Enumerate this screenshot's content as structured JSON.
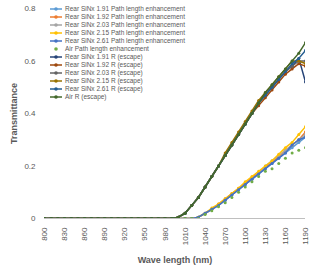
{
  "chart_data": {
    "type": "line",
    "x_label": "Wave length (nm)",
    "y_label": "Transmittance",
    "x": [
      800,
      810,
      820,
      830,
      840,
      850,
      860,
      870,
      880,
      890,
      900,
      910,
      920,
      930,
      940,
      950,
      960,
      970,
      980,
      990,
      1000,
      1010,
      1020,
      1030,
      1040,
      1050,
      1060,
      1070,
      1080,
      1090,
      1100,
      1110,
      1120,
      1130,
      1140,
      1150,
      1160,
      1170,
      1180,
      1190
    ],
    "xlim": [
      800,
      1190
    ],
    "xticks": [
      800,
      830,
      860,
      890,
      920,
      950,
      980,
      1010,
      1040,
      1070,
      1100,
      1130,
      1160,
      1190
    ],
    "ylim": [
      0,
      0.8
    ],
    "yticks": [
      0,
      0.2,
      0.4,
      0.6,
      0.8
    ],
    "grid": false,
    "legend": "top-left",
    "series": [
      {
        "name": "Rear SiNx 1.91 Path length enhancement",
        "color": "#5b9bd5",
        "marker": "circle",
        "line_style": "solid",
        "values": [
          0,
          0,
          0,
          0,
          0,
          0,
          0,
          0,
          0,
          0,
          0,
          0,
          0,
          0,
          0,
          0,
          0,
          0,
          0,
          0,
          0,
          0,
          0,
          0.005,
          0.02,
          0.035,
          0.05,
          0.07,
          0.09,
          0.11,
          0.13,
          0.15,
          0.17,
          0.19,
          0.21,
          0.23,
          0.25,
          0.27,
          0.29,
          0.31
        ]
      },
      {
        "name": "Rear SiNx 1.92 Path length enhancement",
        "color": "#ed7d31",
        "marker": "circle",
        "line_style": "solid",
        "values": [
          0,
          0,
          0,
          0,
          0,
          0,
          0,
          0,
          0,
          0,
          0,
          0,
          0,
          0,
          0,
          0,
          0,
          0,
          0,
          0,
          0,
          0,
          0,
          0.005,
          0.02,
          0.035,
          0.055,
          0.075,
          0.095,
          0.115,
          0.135,
          0.155,
          0.175,
          0.195,
          0.215,
          0.235,
          0.26,
          0.28,
          0.3,
          0.33
        ]
      },
      {
        "name": "Rear SiNx 2.03 Path length enhancement",
        "color": "#a5a5a5",
        "marker": "circle",
        "line_style": "solid",
        "values": [
          0,
          0,
          0,
          0,
          0,
          0,
          0,
          0,
          0,
          0,
          0,
          0,
          0,
          0,
          0,
          0,
          0,
          0,
          0,
          0,
          0,
          0,
          0,
          0.005,
          0.02,
          0.035,
          0.05,
          0.07,
          0.09,
          0.11,
          0.13,
          0.15,
          0.17,
          0.2,
          0.22,
          0.24,
          0.26,
          0.28,
          0.3,
          0.32
        ]
      },
      {
        "name": "Rear SiNx 2.15 Path length enhancement",
        "color": "#ffc000",
        "marker": "circle",
        "line_style": "solid",
        "values": [
          0,
          0,
          0,
          0,
          0,
          0,
          0,
          0,
          0,
          0,
          0,
          0,
          0,
          0,
          0,
          0,
          0,
          0,
          0,
          0,
          0,
          0,
          0,
          0.005,
          0.02,
          0.04,
          0.055,
          0.075,
          0.095,
          0.115,
          0.14,
          0.16,
          0.18,
          0.2,
          0.22,
          0.245,
          0.27,
          0.29,
          0.32,
          0.35
        ]
      },
      {
        "name": "Rear SiNx 2.61 Path length enhancement",
        "color": "#4472c4",
        "marker": "circle",
        "line_style": "solid",
        "values": [
          0,
          0,
          0,
          0,
          0,
          0,
          0,
          0,
          0,
          0,
          0,
          0,
          0,
          0,
          0,
          0,
          0,
          0,
          0,
          0,
          0,
          0,
          0,
          0.005,
          0.02,
          0.035,
          0.05,
          0.07,
          0.09,
          0.11,
          0.13,
          0.15,
          0.17,
          0.19,
          0.21,
          0.23,
          0.25,
          0.28,
          0.3,
          0.31
        ]
      },
      {
        "name": "Air Path length enhancement",
        "color": "#70ad47",
        "marker": "circle",
        "line_style": "none",
        "values": [
          0,
          0,
          0,
          0,
          0,
          0,
          0,
          0,
          0,
          0,
          0,
          0,
          0,
          0,
          0,
          0,
          0,
          0,
          0,
          0,
          0,
          0,
          0,
          0,
          0.015,
          0.03,
          0.045,
          0.06,
          0.08,
          0.1,
          0.12,
          0.14,
          0.16,
          0.18,
          0.19,
          0.21,
          0.23,
          0.25,
          0.26,
          0.27
        ]
      },
      {
        "name": "Rear SiNx 1.91 R (escape)",
        "color": "#264478",
        "marker": "circle",
        "line_style": "solid",
        "values": [
          0,
          0,
          0,
          0,
          0,
          0,
          0,
          0,
          0,
          0,
          0,
          0,
          0,
          0,
          0,
          0,
          0,
          0,
          0,
          0,
          0.005,
          0.02,
          0.05,
          0.08,
          0.12,
          0.16,
          0.2,
          0.24,
          0.28,
          0.32,
          0.36,
          0.4,
          0.44,
          0.47,
          0.5,
          0.53,
          0.56,
          0.58,
          0.61,
          0.52
        ]
      },
      {
        "name": "Rear SiNx 1.92 R (escape)",
        "color": "#9e480e",
        "marker": "circle",
        "line_style": "solid",
        "values": [
          0,
          0,
          0,
          0,
          0,
          0,
          0,
          0,
          0,
          0,
          0,
          0,
          0,
          0,
          0,
          0,
          0,
          0,
          0,
          0,
          0.005,
          0.02,
          0.05,
          0.08,
          0.12,
          0.16,
          0.2,
          0.24,
          0.28,
          0.32,
          0.36,
          0.4,
          0.43,
          0.46,
          0.49,
          0.52,
          0.55,
          0.57,
          0.59,
          0.58
        ]
      },
      {
        "name": "Rear SiNx 2.03 R (escape)",
        "color": "#636363",
        "marker": "circle",
        "line_style": "solid",
        "values": [
          0,
          0,
          0,
          0,
          0,
          0,
          0,
          0,
          0,
          0,
          0,
          0,
          0,
          0,
          0,
          0,
          0,
          0,
          0,
          0,
          0.005,
          0.02,
          0.05,
          0.08,
          0.12,
          0.16,
          0.2,
          0.24,
          0.28,
          0.32,
          0.36,
          0.4,
          0.44,
          0.47,
          0.5,
          0.53,
          0.56,
          0.58,
          0.6,
          0.6
        ]
      },
      {
        "name": "Rear SiNx 2.15 R (escape)",
        "color": "#997300",
        "marker": "circle",
        "line_style": "solid",
        "values": [
          0,
          0,
          0,
          0,
          0,
          0,
          0,
          0,
          0,
          0,
          0,
          0,
          0,
          0,
          0,
          0,
          0,
          0,
          0,
          0,
          0.005,
          0.02,
          0.05,
          0.08,
          0.12,
          0.16,
          0.2,
          0.25,
          0.29,
          0.33,
          0.37,
          0.41,
          0.45,
          0.48,
          0.51,
          0.54,
          0.57,
          0.6,
          0.6,
          0.59
        ]
      },
      {
        "name": "Rear SiNx 2.61 R (escape)",
        "color": "#255e91",
        "marker": "circle",
        "line_style": "solid",
        "values": [
          0,
          0,
          0,
          0,
          0,
          0,
          0,
          0,
          0,
          0,
          0,
          0,
          0,
          0,
          0,
          0,
          0,
          0,
          0,
          0,
          0.005,
          0.02,
          0.05,
          0.08,
          0.12,
          0.16,
          0.2,
          0.24,
          0.28,
          0.32,
          0.36,
          0.4,
          0.44,
          0.47,
          0.5,
          0.53,
          0.56,
          0.59,
          0.61,
          0.64
        ]
      },
      {
        "name": "Air R (escape)",
        "color": "#43682b",
        "marker": "circle",
        "line_style": "solid",
        "values": [
          0,
          0,
          0,
          0,
          0,
          0,
          0,
          0,
          0,
          0,
          0,
          0,
          0,
          0,
          0,
          0,
          0,
          0,
          0,
          0,
          0.005,
          0.02,
          0.05,
          0.08,
          0.12,
          0.16,
          0.2,
          0.24,
          0.28,
          0.32,
          0.36,
          0.4,
          0.44,
          0.48,
          0.51,
          0.54,
          0.57,
          0.6,
          0.63,
          0.67
        ]
      }
    ]
  }
}
